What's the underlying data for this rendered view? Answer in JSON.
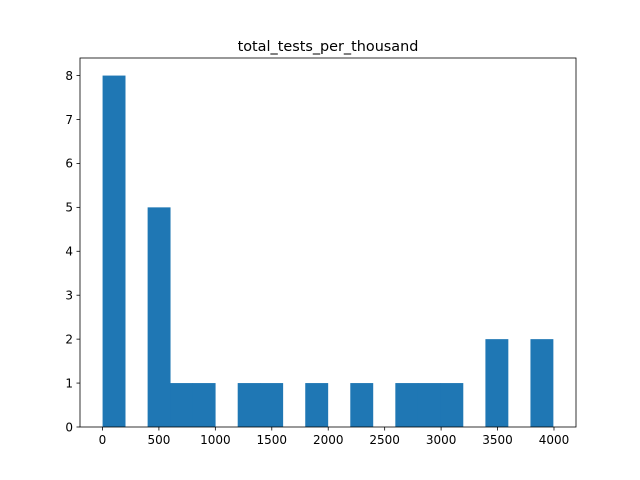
{
  "chart_data": {
    "type": "bar",
    "title": "total_tests_per_thousand",
    "xlabel": "",
    "ylabel": "",
    "bar_color": "#1f77b4",
    "xlim": [
      -199,
      4195
    ],
    "ylim": [
      0,
      8.4
    ],
    "xticks": [
      0,
      500,
      1000,
      1500,
      2000,
      2500,
      3000,
      3500,
      4000
    ],
    "yticks": [
      0,
      1,
      2,
      3,
      4,
      5,
      6,
      7,
      8
    ],
    "bin_edges": [
      1,
      200.5,
      400,
      599.5,
      799,
      998.5,
      1198,
      1397.5,
      1597,
      1796.5,
      1996,
      2195.5,
      2395,
      2594.5,
      2794,
      2993.5,
      3193,
      3392.5,
      3592,
      3791.5,
      3991
    ],
    "values": [
      8,
      0,
      5,
      1,
      1,
      0,
      1,
      1,
      0,
      1,
      0,
      1,
      0,
      1,
      1,
      1,
      0,
      2,
      0,
      2
    ],
    "grid": false,
    "legend": "none"
  }
}
